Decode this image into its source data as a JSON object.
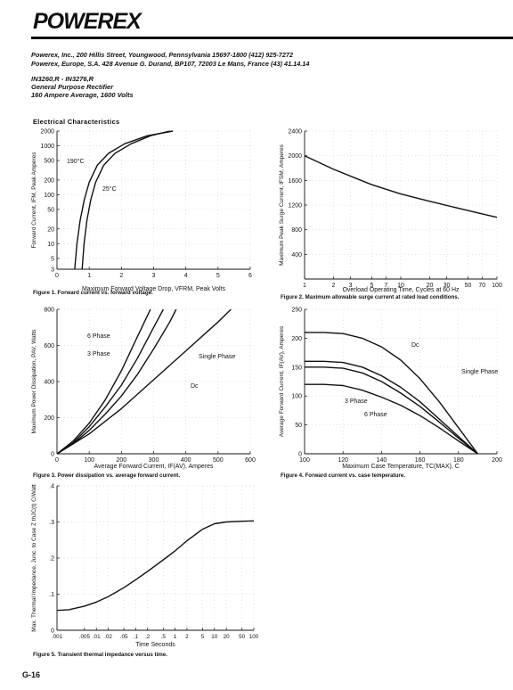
{
  "logo_text": "POWEREX",
  "header_lines": [
    "Powerex, Inc., 200 Hillis Street, Youngwood, Pennsylvania 15697-1800 (412) 925-7272",
    "Powerex, Europe, S.A. 428 Avenue G. Durand, BP107, 72003 Le Mans, France (43) 41.14.14"
  ],
  "part_lines": [
    "IN3260,R - IN3276,R",
    "General Purpose Rectifier",
    "160 Ampere Average, 1600 Volts"
  ],
  "section_title": "Electrical Characteristics",
  "page_number": "G-16",
  "chart_data": [
    {
      "type": "line",
      "caption": "Figure 1.  Forward current vs. forward voltage.",
      "xlabel": "Maximum Forward Voltage Drop, VFRM, Peak Volts",
      "ylabel": "Forward Current, IFM, Peak Amperes",
      "x_ticks": [
        "0",
        "1",
        "2",
        "3",
        "4",
        "5",
        "6"
      ],
      "y_ticks": [
        "2000",
        "1000",
        "500",
        "200",
        "100",
        "50",
        "20",
        "10",
        "5",
        "3"
      ],
      "xlim": [
        0,
        6
      ],
      "ylim": [
        3,
        2000
      ],
      "yscale": "log",
      "series": [
        {
          "name": "190°C",
          "x": [
            0.55,
            0.62,
            0.72,
            0.85,
            1.0,
            1.25,
            1.6,
            2.1,
            2.8,
            3.6
          ],
          "y": [
            3,
            10,
            30,
            80,
            180,
            400,
            700,
            1100,
            1600,
            2000
          ]
        },
        {
          "name": "25°C",
          "x": [
            0.78,
            0.84,
            0.93,
            1.05,
            1.2,
            1.45,
            1.8,
            2.3,
            2.9,
            3.5
          ],
          "y": [
            3,
            10,
            30,
            80,
            180,
            400,
            700,
            1100,
            1600,
            2000
          ]
        }
      ]
    },
    {
      "type": "line",
      "caption": "Figure 2.  Maximum allowable surge current at rated load conditions.",
      "xlabel": "Overload Operating Time, Cycles at 60 Hz",
      "ylabel": "Maximum Peak Surge Current, IFSM, Amperes",
      "x_ticks": [
        "1",
        "2",
        "3",
        "5",
        "7",
        "10",
        "20",
        "30",
        "50",
        "70",
        "100"
      ],
      "y_ticks": [
        "2400",
        "2000",
        "1600",
        "1200",
        "800",
        "400"
      ],
      "xlim": [
        1,
        100
      ],
      "ylim": [
        0,
        2400
      ],
      "xscale": "log",
      "series": [
        {
          "name": "",
          "x": [
            1,
            2,
            5,
            10,
            20,
            50,
            100
          ],
          "y": [
            2000,
            1780,
            1530,
            1380,
            1260,
            1110,
            1000
          ]
        }
      ]
    },
    {
      "type": "line",
      "caption": "Figure 3.  Power dissipation vs. average forward current.",
      "xlabel": "Average Forward Current, IF(AV), Amperes",
      "ylabel": "Maximum Power Dissipation, PAV, Watts",
      "x_ticks": [
        "0",
        "100",
        "200",
        "300",
        "400",
        "500",
        "600"
      ],
      "y_ticks": [
        "800",
        "600",
        "400",
        "200",
        "0"
      ],
      "xlim": [
        0,
        600
      ],
      "ylim": [
        0,
        800
      ],
      "series": [
        {
          "name": "6 Phase",
          "x": [
            0,
            50,
            100,
            150,
            200,
            250,
            290
          ],
          "y": [
            0,
            70,
            170,
            300,
            460,
            650,
            800
          ]
        },
        {
          "name": "3 Phase",
          "x": [
            0,
            50,
            100,
            150,
            200,
            250,
            300,
            330
          ],
          "y": [
            0,
            60,
            150,
            260,
            380,
            530,
            700,
            800
          ]
        },
        {
          "name": "Single Phase",
          "x": [
            0,
            50,
            100,
            150,
            200,
            250,
            300,
            350,
            370
          ],
          "y": [
            0,
            55,
            130,
            220,
            320,
            440,
            580,
            730,
            800
          ]
        },
        {
          "name": "Dc",
          "x": [
            0,
            100,
            200,
            300,
            400,
            500,
            540
          ],
          "y": [
            0,
            110,
            250,
            410,
            570,
            730,
            800
          ]
        }
      ]
    },
    {
      "type": "line",
      "caption": "Figure 4.  Forward current vs. case temperature.",
      "xlabel": "Maximum Case Temperature, TC(MAX), C",
      "ylabel": "Average Forward Current, IF(AV), Amperes",
      "x_ticks": [
        "100",
        "120",
        "140",
        "160",
        "180",
        "200"
      ],
      "y_ticks": [
        "250",
        "200",
        "150",
        "100",
        "50",
        "0"
      ],
      "xlim": [
        100,
        200
      ],
      "ylim": [
        0,
        250
      ],
      "series": [
        {
          "name": "Dc",
          "x": [
            100,
            110,
            120,
            130,
            140,
            150,
            160,
            170,
            180,
            190
          ],
          "y": [
            210,
            210,
            208,
            200,
            185,
            162,
            130,
            90,
            45,
            0
          ]
        },
        {
          "name": "Single Phase",
          "x": [
            100,
            110,
            120,
            130,
            140,
            150,
            160,
            170,
            180,
            190
          ],
          "y": [
            160,
            160,
            158,
            150,
            135,
            115,
            90,
            60,
            30,
            0
          ]
        },
        {
          "name": "3 Phase",
          "x": [
            100,
            110,
            120,
            130,
            140,
            150,
            160,
            170,
            180,
            190
          ],
          "y": [
            150,
            150,
            148,
            140,
            125,
            105,
            82,
            55,
            27,
            0
          ]
        },
        {
          "name": "6 Phase",
          "x": [
            100,
            110,
            120,
            130,
            140,
            150,
            160,
            170,
            180,
            190
          ],
          "y": [
            120,
            120,
            118,
            110,
            98,
            84,
            66,
            45,
            22,
            0
          ]
        }
      ]
    },
    {
      "type": "line",
      "caption": "Figure 5.  Transient thermal impedance versus time.",
      "xlabel": "Time   Seconds",
      "ylabel": "Max. Thermal Impedance, Junc. to Case Z thJC(t) C/Watt",
      "x_ticks": [
        ".001",
        ".005",
        ".01",
        ".02",
        ".05",
        ".1",
        ".2",
        ".5",
        "1",
        "2",
        "5",
        "10",
        "20",
        "50",
        "100"
      ],
      "y_ticks": [
        ".4",
        ".3",
        ".2",
        ".1",
        "0"
      ],
      "xlim": [
        0.001,
        100
      ],
      "ylim": [
        0,
        0.4
      ],
      "xscale": "log",
      "series": [
        {
          "name": "",
          "x": [
            0.001,
            0.002,
            0.005,
            0.01,
            0.02,
            0.05,
            0.1,
            0.2,
            0.5,
            1,
            2,
            5,
            10,
            20,
            50,
            100
          ],
          "y": [
            0.055,
            0.057,
            0.067,
            0.078,
            0.093,
            0.118,
            0.14,
            0.163,
            0.195,
            0.22,
            0.248,
            0.28,
            0.295,
            0.3,
            0.302,
            0.303
          ]
        }
      ]
    }
  ]
}
